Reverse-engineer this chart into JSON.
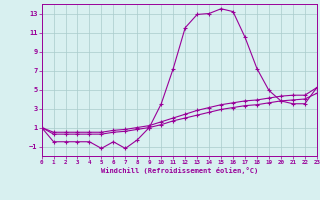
{
  "hours": [
    0,
    1,
    2,
    3,
    4,
    5,
    6,
    7,
    8,
    9,
    10,
    11,
    12,
    13,
    14,
    15,
    16,
    17,
    18,
    19,
    20,
    21,
    22,
    23
  ],
  "windchill": [
    1.0,
    -0.5,
    -0.5,
    -0.5,
    -0.5,
    -1.2,
    -0.5,
    -1.2,
    -0.3,
    1.0,
    3.5,
    7.2,
    11.5,
    12.9,
    13.0,
    13.5,
    13.2,
    10.5,
    7.2,
    4.9,
    3.8,
    3.5,
    3.5,
    5.2
  ],
  "temp_high": [
    1.0,
    0.5,
    0.5,
    0.5,
    0.5,
    0.5,
    0.7,
    0.8,
    1.0,
    1.2,
    1.6,
    2.0,
    2.4,
    2.8,
    3.1,
    3.4,
    3.6,
    3.8,
    3.9,
    4.1,
    4.3,
    4.4,
    4.4,
    5.2
  ],
  "temp_low": [
    1.0,
    0.3,
    0.3,
    0.3,
    0.3,
    0.3,
    0.5,
    0.6,
    0.8,
    1.0,
    1.3,
    1.7,
    2.0,
    2.3,
    2.6,
    2.9,
    3.1,
    3.3,
    3.4,
    3.6,
    3.8,
    3.9,
    4.0,
    4.6
  ],
  "line_color": "#990099",
  "bg_color": "#d8f0f0",
  "grid_color": "#aacccc",
  "xlabel": "Windchill (Refroidissement éolien,°C)",
  "ylim": [
    -2,
    14
  ],
  "xlim": [
    0,
    23
  ],
  "yticks": [
    -1,
    1,
    3,
    5,
    7,
    9,
    11,
    13
  ],
  "xticks": [
    0,
    1,
    2,
    3,
    4,
    5,
    6,
    7,
    8,
    9,
    10,
    11,
    12,
    13,
    14,
    15,
    16,
    17,
    18,
    19,
    20,
    21,
    22,
    23
  ]
}
